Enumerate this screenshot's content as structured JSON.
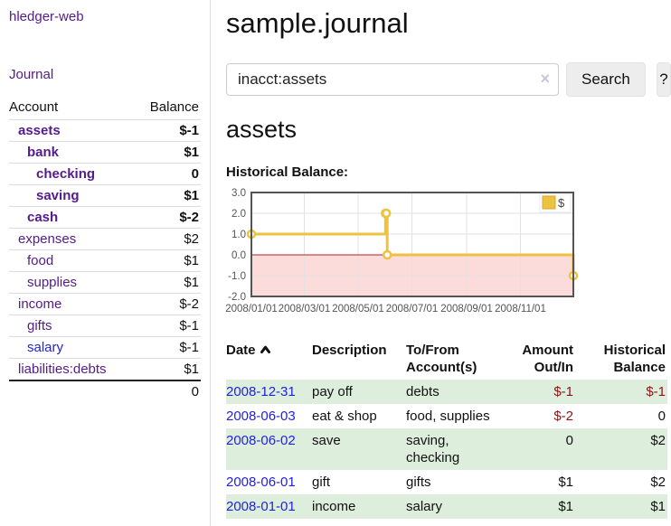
{
  "sidebar": {
    "brand": "hledger-web",
    "nav": {
      "journal_label": "Journal"
    },
    "accounts": {
      "headers": {
        "account": "Account",
        "balance": "Balance"
      },
      "rows": [
        {
          "name": "assets",
          "level": 0,
          "bold": true,
          "balance": "$-1",
          "tone": "neg"
        },
        {
          "name": "bank",
          "level": 1,
          "bold": true,
          "balance": "$1",
          "tone": ""
        },
        {
          "name": "checking",
          "level": 2,
          "bold": true,
          "balance": "0",
          "tone": ""
        },
        {
          "name": "saving",
          "level": 2,
          "bold": true,
          "balance": "$1",
          "tone": ""
        },
        {
          "name": "cash",
          "level": 1,
          "bold": true,
          "balance": "$-2",
          "tone": "neg"
        },
        {
          "name": "expenses",
          "level": 0,
          "bold": false,
          "balance": "$2",
          "tone": ""
        },
        {
          "name": "food",
          "level": 1,
          "bold": false,
          "balance": "$1",
          "tone": ""
        },
        {
          "name": "supplies",
          "level": 1,
          "bold": false,
          "balance": "$1",
          "tone": ""
        },
        {
          "name": "income",
          "level": 0,
          "bold": false,
          "balance": "$-2",
          "tone": "negsoft"
        },
        {
          "name": "gifts",
          "level": 1,
          "bold": false,
          "balance": "$-1",
          "tone": "negsoft"
        },
        {
          "name": "salary",
          "level": 1,
          "bold": false,
          "balance": "$-1",
          "tone": "negsoft",
          "blue": true
        },
        {
          "name": "liabilities:debts",
          "level": 0,
          "bold": false,
          "balance": "$1",
          "tone": ""
        }
      ],
      "total": "0"
    }
  },
  "header": {
    "title": "sample.journal"
  },
  "search": {
    "value": "inacct:assets",
    "clear_icon": "×",
    "button_label": "Search",
    "help_label": "?"
  },
  "account_page": {
    "heading": "assets",
    "chart_label": "Historical Balance:"
  },
  "chart_data": {
    "type": "line",
    "title": "Historical Balance",
    "step": true,
    "series": [
      {
        "name": "$",
        "color": "#edc240",
        "points": [
          [
            "2008-01-01",
            1
          ],
          [
            "2008-06-01",
            2
          ],
          [
            "2008-06-02",
            2
          ],
          [
            "2008-06-03",
            0
          ],
          [
            "2008-12-31",
            -1
          ]
        ]
      }
    ],
    "xrange": [
      "2008-01-01",
      "2008-12-31"
    ],
    "ylim": [
      -2,
      3
    ],
    "yticks": [
      3,
      2,
      1,
      0,
      -1,
      -2
    ],
    "ytick_labels": [
      "3.0",
      "2.0",
      "1.0",
      "0.0",
      "-1.0",
      "-2.0"
    ],
    "xtick_dates": [
      "2008-01-01",
      "2008-03-01",
      "2008-05-01",
      "2008-07-01",
      "2008-09-01",
      "2008-11-01"
    ],
    "xtick_labels": [
      "2008/01/01",
      "2008/03/01",
      "2008/05/01",
      "2008/07/01",
      "2008/09/01",
      "2008/11/01"
    ],
    "legend": {
      "label": "$",
      "position": "top-right"
    },
    "negative_region": {
      "below": 0,
      "fill": "#fcdbdb",
      "line_color": "#b22222"
    },
    "grid": true,
    "colors": {
      "border": "#545454",
      "gridline": "#e2e2e2",
      "tick_text": "#545454"
    }
  },
  "transactions": {
    "headers": {
      "date": "Date",
      "description": "Description",
      "accounts": "To/From Account(s)",
      "amount": "Amount Out/In",
      "balance": "Historical Balance"
    },
    "rows": [
      {
        "date": "2008-12-31",
        "description": "pay off",
        "accounts": "debts",
        "amount": "$-1",
        "balance": "$-1",
        "amount_negative": true,
        "balance_negative": true
      },
      {
        "date": "2008-06-03",
        "description": "eat & shop",
        "accounts": "food, supplies",
        "amount": "$-2",
        "balance": "0",
        "amount_negative": true,
        "balance_negative": false
      },
      {
        "date": "2008-06-02",
        "description": "save",
        "accounts": "saving, checking",
        "amount": "0",
        "balance": "$2",
        "amount_negative": false,
        "balance_negative": false
      },
      {
        "date": "2008-06-01",
        "description": "gift",
        "accounts": "gifts",
        "amount": "$1",
        "balance": "$2",
        "amount_negative": false,
        "balance_negative": false
      },
      {
        "date": "2008-01-01",
        "description": "income",
        "accounts": "salary",
        "amount": "$1",
        "balance": "$1",
        "amount_negative": false,
        "balance_negative": false
      }
    ]
  }
}
